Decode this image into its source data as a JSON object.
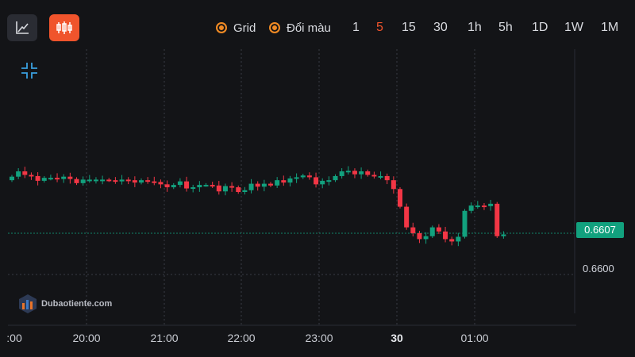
{
  "toolbar": {
    "line_chart_icon": "line-chart-icon",
    "candlestick_icon": "candlestick-icon",
    "options": [
      {
        "label": "Grid",
        "checked": true
      },
      {
        "label": "Đổi màu",
        "checked": true
      }
    ],
    "timeframes": [
      "1",
      "5",
      "15",
      "30",
      "1h",
      "5h",
      "1D",
      "1W",
      "1M"
    ],
    "active_timeframe": "5"
  },
  "collapse_icon": "collapse-icon",
  "watermark": {
    "text": "Dubaotiente.com",
    "logo": "dubaotiente-logo"
  },
  "colors": {
    "up": "#12a17e",
    "down": "#f23645",
    "accent": "#f0542c",
    "background": "#131417"
  },
  "chart_data": {
    "type": "candlestick",
    "x_ticks": [
      ":00",
      "20:00",
      "21:00",
      "22:00",
      "23:00",
      "30",
      "01:00"
    ],
    "bold_ticks": [
      "30"
    ],
    "price_labels": [
      "0.6607",
      "0.6600"
    ],
    "last_price": 0.6607,
    "grid": true,
    "candles_close": [
      0.66166,
      0.66175,
      0.66169,
      0.66167,
      0.66159,
      0.66164,
      0.66164,
      0.66162,
      0.66166,
      0.66162,
      0.66155,
      0.66161,
      0.66161,
      0.66161,
      0.66161,
      0.6616,
      0.66158,
      0.66161,
      0.6616,
      0.66156,
      0.6616,
      0.66158,
      0.66157,
      0.66153,
      0.66148,
      0.66152,
      0.66158,
      0.66146,
      0.66148,
      0.66152,
      0.66152,
      0.66151,
      0.66141,
      0.6615,
      0.66148,
      0.6614,
      0.66143,
      0.66154,
      0.66149,
      0.66154,
      0.66151,
      0.6616,
      0.66156,
      0.66163,
      0.66165,
      0.66168,
      0.66165,
      0.66153,
      0.66159,
      0.6616,
      0.66167,
      0.66175,
      0.66176,
      0.6617,
      0.66175,
      0.66169,
      0.66167,
      0.66167,
      0.6616,
      0.66145,
      0.66115,
      0.6608,
      0.6607,
      0.6606,
      0.66065,
      0.6608,
      0.66073,
      0.6606,
      0.66056,
      0.66064,
      0.66108,
      0.66117,
      0.66117,
      0.66116,
      0.6612,
      0.66065,
      0.66068
    ]
  }
}
